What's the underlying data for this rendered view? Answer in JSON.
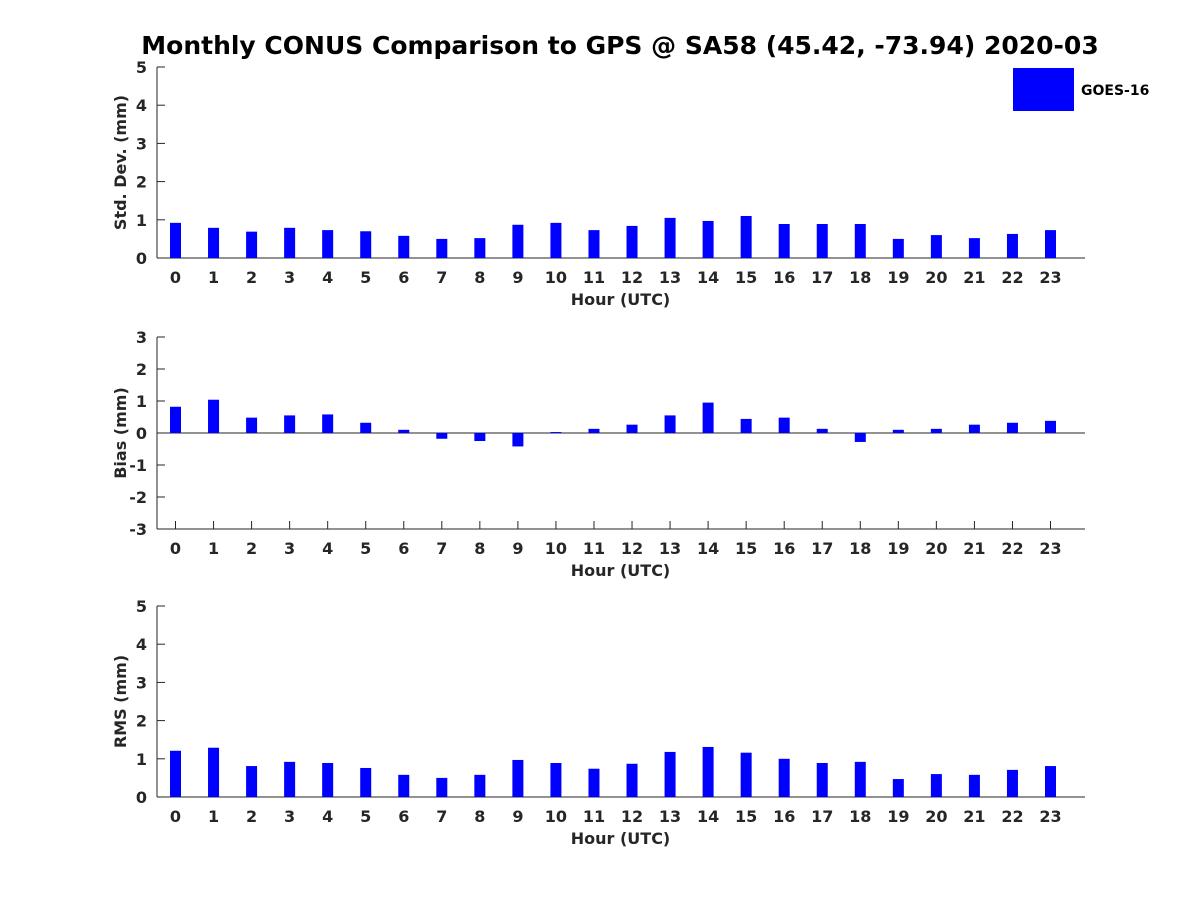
{
  "figure": {
    "title": "Monthly CONUS Comparison to GPS @ SA58 (45.42, -73.94) 2020-03",
    "legend": {
      "label": "GOES-16",
      "color": "#0000ff",
      "placement": "top-right"
    }
  },
  "chart_data": [
    {
      "type": "bar",
      "categories": [
        "0",
        "1",
        "2",
        "3",
        "4",
        "5",
        "6",
        "7",
        "8",
        "9",
        "10",
        "11",
        "12",
        "13",
        "14",
        "15",
        "16",
        "17",
        "18",
        "19",
        "20",
        "21",
        "22",
        "23"
      ],
      "series": [
        {
          "name": "GOES-16",
          "color": "#0000ff",
          "values": [
            0.92,
            0.79,
            0.69,
            0.79,
            0.73,
            0.7,
            0.58,
            0.5,
            0.52,
            0.87,
            0.92,
            0.73,
            0.84,
            1.05,
            0.97,
            1.1,
            0.89,
            0.89,
            0.89,
            0.5,
            0.6,
            0.52,
            0.63,
            0.73
          ]
        }
      ],
      "xlabel": "Hour (UTC)",
      "ylabel": "Std. Dev. (mm)",
      "ylim": [
        0,
        5
      ],
      "yticks": [
        "0",
        "1",
        "2",
        "3",
        "4",
        "5"
      ],
      "grid": false
    },
    {
      "type": "bar",
      "categories": [
        "0",
        "1",
        "2",
        "3",
        "4",
        "5",
        "6",
        "7",
        "8",
        "9",
        "10",
        "11",
        "12",
        "13",
        "14",
        "15",
        "16",
        "17",
        "18",
        "19",
        "20",
        "21",
        "22",
        "23"
      ],
      "series": [
        {
          "name": "GOES-16",
          "color": "#0000ff",
          "values": [
            0.82,
            1.04,
            0.48,
            0.55,
            0.58,
            0.32,
            0.1,
            -0.18,
            -0.25,
            -0.42,
            0.03,
            0.13,
            0.26,
            0.55,
            0.95,
            0.44,
            0.48,
            0.13,
            -0.28,
            0.1,
            0.13,
            0.26,
            0.32,
            0.38
          ]
        }
      ],
      "xlabel": "Hour (UTC)",
      "ylabel": "Bias (mm)",
      "ylim": [
        -3,
        3
      ],
      "yticks": [
        "-3",
        "-2",
        "-1",
        "0",
        "1",
        "2",
        "3"
      ],
      "grid": false
    },
    {
      "type": "bar",
      "categories": [
        "0",
        "1",
        "2",
        "3",
        "4",
        "5",
        "6",
        "7",
        "8",
        "9",
        "10",
        "11",
        "12",
        "13",
        "14",
        "15",
        "16",
        "17",
        "18",
        "19",
        "20",
        "21",
        "22",
        "23"
      ],
      "series": [
        {
          "name": "GOES-16",
          "color": "#0000ff",
          "values": [
            1.21,
            1.29,
            0.81,
            0.92,
            0.89,
            0.76,
            0.58,
            0.5,
            0.58,
            0.97,
            0.89,
            0.74,
            0.87,
            1.18,
            1.31,
            1.16,
            1.0,
            0.89,
            0.92,
            0.47,
            0.6,
            0.58,
            0.71,
            0.81
          ]
        }
      ],
      "xlabel": "Hour (UTC)",
      "ylabel": "RMS (mm)",
      "ylim": [
        0,
        5
      ],
      "yticks": [
        "0",
        "1",
        "2",
        "3",
        "4",
        "5"
      ],
      "grid": false
    }
  ]
}
